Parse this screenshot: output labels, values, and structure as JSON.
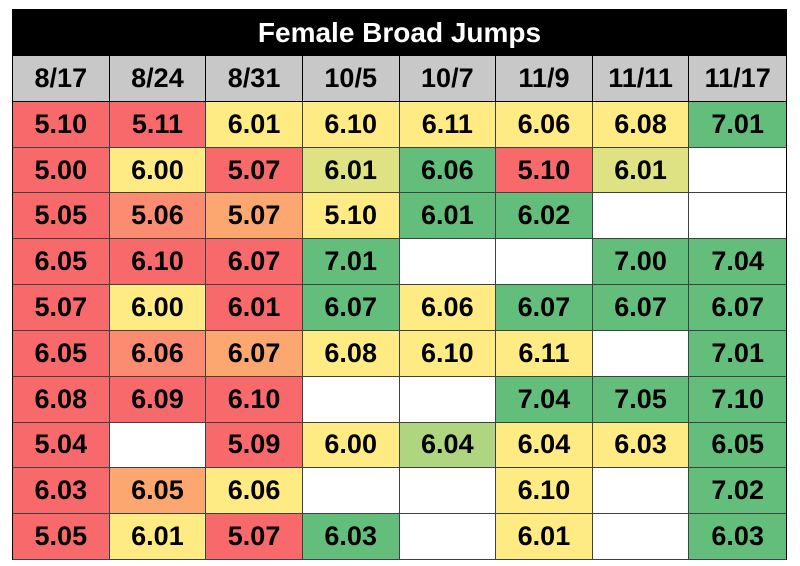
{
  "chart_data": {
    "type": "table",
    "title": "Female Broad Jumps",
    "columns": [
      "8/17",
      "8/24",
      "8/31",
      "10/5",
      "10/7",
      "11/9",
      "11/11",
      "11/17"
    ],
    "rows": [
      [
        "5.10",
        "5.11",
        "6.01",
        "6.10",
        "6.11",
        "6.06",
        "6.08",
        "7.01"
      ],
      [
        "5.00",
        "6.00",
        "5.07",
        "6.01",
        "6.06",
        "5.10",
        "6.01",
        ""
      ],
      [
        "5.05",
        "5.06",
        "5.07",
        "5.10",
        "6.01",
        "6.02",
        "",
        ""
      ],
      [
        "6.05",
        "6.10",
        "6.07",
        "7.01",
        "",
        "",
        "7.00",
        "7.04"
      ],
      [
        "5.07",
        "6.00",
        "6.01",
        "6.07",
        "6.06",
        "6.07",
        "6.07",
        "6.07"
      ],
      [
        "6.05",
        "6.06",
        "6.07",
        "6.08",
        "6.10",
        "6.11",
        "",
        "7.01"
      ],
      [
        "6.08",
        "6.09",
        "6.10",
        "",
        "",
        "7.04",
        "7.05",
        "7.10"
      ],
      [
        "5.04",
        "",
        "5.09",
        "6.00",
        "6.04",
        "6.04",
        "6.03",
        "6.05"
      ],
      [
        "6.03",
        "6.05",
        "6.06",
        "",
        "",
        "6.10",
        "",
        "7.02"
      ],
      [
        "5.05",
        "6.01",
        "5.07",
        "6.03",
        "",
        "6.01",
        "",
        "6.03"
      ]
    ],
    "cell_colors": [
      [
        "#f8696b",
        "#f8696b",
        "#ffeb84",
        "#ffeb84",
        "#ffeb84",
        "#ffeb84",
        "#ffeb84",
        "#63be7b"
      ],
      [
        "#f8696b",
        "#ffeb84",
        "#f8696b",
        "#dfe283",
        "#63be7b",
        "#f8696b",
        "#dfe283",
        "#ffffff"
      ],
      [
        "#f8696b",
        "#fb8c72",
        "#fba76f",
        "#ffeb84",
        "#63be7b",
        "#63be7b",
        "#ffffff",
        "#ffffff"
      ],
      [
        "#f8696b",
        "#f8696b",
        "#f8696b",
        "#63be7b",
        "#ffffff",
        "#ffffff",
        "#63be7b",
        "#63be7b"
      ],
      [
        "#f8696b",
        "#ffeb84",
        "#f8696b",
        "#63be7b",
        "#ffeb84",
        "#63be7b",
        "#63be7b",
        "#63be7b"
      ],
      [
        "#f8696b",
        "#fb8c72",
        "#fba76f",
        "#ffeb84",
        "#ffeb84",
        "#ffeb84",
        "#ffffff",
        "#63be7b"
      ],
      [
        "#f8696b",
        "#f8696b",
        "#f8696b",
        "#ffffff",
        "#ffffff",
        "#63be7b",
        "#63be7b",
        "#63be7b"
      ],
      [
        "#f8696b",
        "#ffffff",
        "#f8696b",
        "#ffeb84",
        "#b0d580",
        "#ffeb84",
        "#ffeb84",
        "#63be7b"
      ],
      [
        "#f8696b",
        "#fba76f",
        "#ffeb84",
        "#ffffff",
        "#ffffff",
        "#ffeb84",
        "#ffffff",
        "#63be7b"
      ],
      [
        "#f8696b",
        "#ffeb84",
        "#f8696b",
        "#63be7b",
        "#ffffff",
        "#ffeb84",
        "#ffffff",
        "#63be7b"
      ]
    ],
    "colors": {
      "title_bg": "#000000",
      "title_text": "#ffffff",
      "header_bg": "#c8c8c8"
    }
  }
}
